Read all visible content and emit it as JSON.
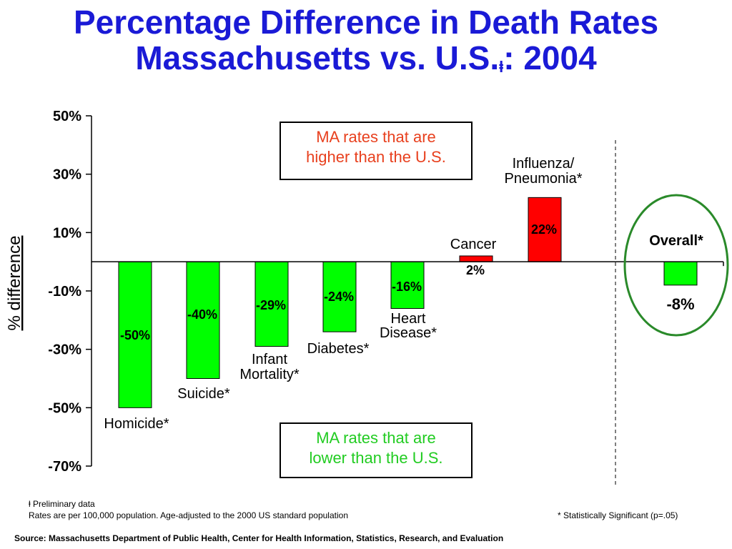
{
  "title_line1": "Percentage Difference in Death Rates",
  "title_line2_main": "Massachusetts vs. U.S.",
  "title_line2_mark": "ⱡ",
  "title_line2_end": ": 2004",
  "boxes": {
    "higher_line1": "MA rates that are",
    "higher_line2": "higher than the U.S.",
    "higher_color": "#e8401e",
    "lower_line1": "MA rates that are",
    "lower_line2": "lower than the U.S.",
    "lower_color": "#22cc22"
  },
  "footnotes": {
    "preliminary": "ⱡ Preliminary data",
    "rates": "Rates are per 100,000 population.  Age-adjusted to the 2000 US standard population",
    "significance": "* Statistically Significant  (p=.05)",
    "source": "Source:  Massachusetts Department of Public Health, Center for Health Information, Statistics, Research, and Evaluation"
  },
  "chart_data": {
    "type": "bar",
    "title": "Percentage Difference in Death Rates Massachusetts vs. U.S.ⱡ: 2004",
    "ylabel": "% difference",
    "ylim": [
      -70,
      50
    ],
    "yticks": [
      "50%",
      "30%",
      "10%",
      "-10%",
      "-30%",
      "-50%",
      "-70%"
    ],
    "ytick_values": [
      50,
      30,
      10,
      -10,
      -30,
      -50,
      -70
    ],
    "grid": false,
    "positive_color": "#ff0000",
    "negative_color": "#00ff00",
    "overall_ring_color": "#2a8a2a",
    "categories": [
      {
        "label": [
          "Homicide*"
        ],
        "value": -50,
        "value_label": "-50%"
      },
      {
        "label": [
          "Suicide*"
        ],
        "value": -40,
        "value_label": "-40%"
      },
      {
        "label": [
          "Infant",
          "Mortality*"
        ],
        "value": -29,
        "value_label": "-29%"
      },
      {
        "label": [
          "Diabetes*"
        ],
        "value": -24,
        "value_label": "-24%"
      },
      {
        "label": [
          "Heart",
          "Disease*"
        ],
        "value": -16,
        "value_label": "-16%"
      },
      {
        "label": [
          "Cancer"
        ],
        "value": 2,
        "value_label": "2%"
      },
      {
        "label": [
          "Influenza/",
          "Pneumonia*"
        ],
        "value": 22,
        "value_label": "22%"
      },
      {
        "label": [
          "Overall*"
        ],
        "value": -8,
        "value_label": "-8%"
      }
    ]
  }
}
